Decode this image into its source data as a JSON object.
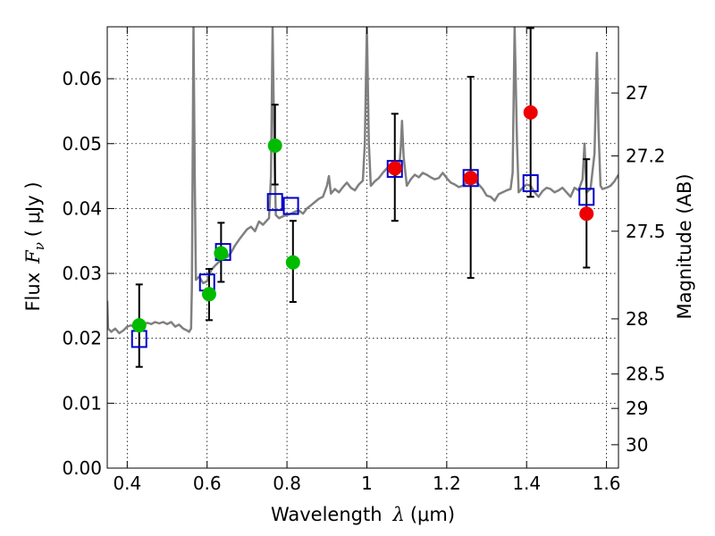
{
  "chart_data": {
    "type": "scatter",
    "xlabel_text": "Wavelength",
    "xlabel_symbol": "λ",
    "xlabel_unit": "(μm)",
    "ylabel_text": "Flux",
    "ylabel_symbol": "F",
    "ylabel_subscript": "ν",
    "ylabel_unit": "( μJy )",
    "y2label": "Magnitude (AB)",
    "xlim": [
      0.35,
      1.63
    ],
    "ylim": [
      0.0,
      0.068
    ],
    "grid": true,
    "x_ticks": [
      0.4,
      0.6,
      0.8,
      1.0,
      1.2,
      1.4,
      1.6
    ],
    "x_tick_labels": [
      "0.4",
      "0.6",
      "0.8",
      "1",
      "1.2",
      "1.4",
      "1.6"
    ],
    "y_ticks": [
      0.0,
      0.01,
      0.02,
      0.03,
      0.04,
      0.05,
      0.06
    ],
    "y_tick_labels": [
      "0.00",
      "0.01",
      "0.02",
      "0.03",
      "0.04",
      "0.05",
      "0.06"
    ],
    "y2_ticks": [
      {
        "label": "27",
        "flux": 0.0578
      },
      {
        "label": "27.2",
        "flux": 0.0481
      },
      {
        "label": "27.5",
        "flux": 0.0365
      },
      {
        "label": "28",
        "flux": 0.023
      },
      {
        "label": "28.5",
        "flux": 0.0145
      },
      {
        "label": "29",
        "flux": 0.0092
      },
      {
        "label": "30",
        "flux": 0.0036
      }
    ],
    "series": [
      {
        "name": "model_spectrum",
        "style": "line",
        "color": "#808080",
        "points": [
          [
            0.35,
            0.0258
          ],
          [
            0.352,
            0.0215
          ],
          [
            0.36,
            0.021
          ],
          [
            0.37,
            0.0215
          ],
          [
            0.38,
            0.0208
          ],
          [
            0.39,
            0.0212
          ],
          [
            0.4,
            0.0218
          ],
          [
            0.41,
            0.022
          ],
          [
            0.42,
            0.0216
          ],
          [
            0.43,
            0.0222
          ],
          [
            0.44,
            0.022
          ],
          [
            0.45,
            0.0224
          ],
          [
            0.46,
            0.0222
          ],
          [
            0.47,
            0.0225
          ],
          [
            0.48,
            0.0223
          ],
          [
            0.49,
            0.0225
          ],
          [
            0.5,
            0.0222
          ],
          [
            0.51,
            0.0225
          ],
          [
            0.52,
            0.0218
          ],
          [
            0.53,
            0.0221
          ],
          [
            0.54,
            0.0215
          ],
          [
            0.55,
            0.0212
          ],
          [
            0.555,
            0.021
          ],
          [
            0.56,
            0.0215
          ],
          [
            0.562,
            0.028
          ],
          [
            0.566,
            0.068
          ],
          [
            0.569,
            0.045
          ],
          [
            0.572,
            0.029
          ],
          [
            0.58,
            0.0295
          ],
          [
            0.59,
            0.0285
          ],
          [
            0.6,
            0.0288
          ],
          [
            0.61,
            0.0305
          ],
          [
            0.62,
            0.0312
          ],
          [
            0.63,
            0.0318
          ],
          [
            0.64,
            0.0323
          ],
          [
            0.65,
            0.0325
          ],
          [
            0.66,
            0.0332
          ],
          [
            0.67,
            0.0343
          ],
          [
            0.68,
            0.0352
          ],
          [
            0.69,
            0.036
          ],
          [
            0.7,
            0.0368
          ],
          [
            0.71,
            0.0372
          ],
          [
            0.72,
            0.0365
          ],
          [
            0.73,
            0.038
          ],
          [
            0.74,
            0.0375
          ],
          [
            0.75,
            0.0382
          ],
          [
            0.755,
            0.0385
          ],
          [
            0.76,
            0.045
          ],
          [
            0.764,
            0.068
          ],
          [
            0.768,
            0.05
          ],
          [
            0.772,
            0.039
          ],
          [
            0.78,
            0.0385
          ],
          [
            0.79,
            0.0388
          ],
          [
            0.8,
            0.039
          ],
          [
            0.81,
            0.0392
          ],
          [
            0.82,
            0.0395
          ],
          [
            0.83,
            0.0397
          ],
          [
            0.84,
            0.0392
          ],
          [
            0.85,
            0.04
          ],
          [
            0.86,
            0.0405
          ],
          [
            0.87,
            0.041
          ],
          [
            0.88,
            0.0415
          ],
          [
            0.89,
            0.0418
          ],
          [
            0.9,
            0.0435
          ],
          [
            0.905,
            0.045
          ],
          [
            0.91,
            0.0423
          ],
          [
            0.92,
            0.043
          ],
          [
            0.93,
            0.0425
          ],
          [
            0.94,
            0.0433
          ],
          [
            0.95,
            0.044
          ],
          [
            0.96,
            0.0432
          ],
          [
            0.97,
            0.0428
          ],
          [
            0.98,
            0.0437
          ],
          [
            0.99,
            0.0443
          ],
          [
            0.995,
            0.05
          ],
          [
            1.0,
            0.068
          ],
          [
            1.005,
            0.05
          ],
          [
            1.01,
            0.0435
          ],
          [
            1.02,
            0.0442
          ],
          [
            1.03,
            0.0447
          ],
          [
            1.04,
            0.0455
          ],
          [
            1.05,
            0.0462
          ],
          [
            1.06,
            0.046
          ],
          [
            1.07,
            0.045
          ],
          [
            1.08,
            0.0455
          ],
          [
            1.085,
            0.0495
          ],
          [
            1.088,
            0.0535
          ],
          [
            1.092,
            0.048
          ],
          [
            1.1,
            0.0435
          ],
          [
            1.11,
            0.0445
          ],
          [
            1.12,
            0.0452
          ],
          [
            1.13,
            0.0448
          ],
          [
            1.14,
            0.0455
          ],
          [
            1.15,
            0.0452
          ],
          [
            1.16,
            0.0448
          ],
          [
            1.17,
            0.0445
          ],
          [
            1.18,
            0.0447
          ],
          [
            1.19,
            0.0455
          ],
          [
            1.2,
            0.0447
          ],
          [
            1.21,
            0.044
          ],
          [
            1.22,
            0.0437
          ],
          [
            1.23,
            0.0433
          ],
          [
            1.24,
            0.0435
          ],
          [
            1.25,
            0.044
          ],
          [
            1.26,
            0.0445
          ],
          [
            1.27,
            0.0442
          ],
          [
            1.28,
            0.0437
          ],
          [
            1.29,
            0.043
          ],
          [
            1.3,
            0.042
          ],
          [
            1.31,
            0.0418
          ],
          [
            1.32,
            0.0412
          ],
          [
            1.33,
            0.0422
          ],
          [
            1.34,
            0.0425
          ],
          [
            1.35,
            0.0428
          ],
          [
            1.36,
            0.043
          ],
          [
            1.365,
            0.0455
          ],
          [
            1.37,
            0.068
          ],
          [
            1.376,
            0.05
          ],
          [
            1.38,
            0.0425
          ],
          [
            1.39,
            0.0432
          ],
          [
            1.4,
            0.0437
          ],
          [
            1.41,
            0.0435
          ],
          [
            1.42,
            0.0425
          ],
          [
            1.43,
            0.0418
          ],
          [
            1.44,
            0.0427
          ],
          [
            1.45,
            0.0432
          ],
          [
            1.46,
            0.043
          ],
          [
            1.47,
            0.0425
          ],
          [
            1.48,
            0.0428
          ],
          [
            1.49,
            0.0432
          ],
          [
            1.5,
            0.0425
          ],
          [
            1.51,
            0.0418
          ],
          [
            1.52,
            0.0432
          ],
          [
            1.53,
            0.0428
          ],
          [
            1.54,
            0.0445
          ],
          [
            1.545,
            0.05
          ],
          [
            1.55,
            0.0425
          ],
          [
            1.56,
            0.043
          ],
          [
            1.57,
            0.0485
          ],
          [
            1.573,
            0.0562
          ],
          [
            1.576,
            0.064
          ],
          [
            1.58,
            0.052
          ],
          [
            1.585,
            0.0435
          ],
          [
            1.59,
            0.043
          ],
          [
            1.6,
            0.0432
          ],
          [
            1.61,
            0.0435
          ],
          [
            1.62,
            0.0442
          ],
          [
            1.63,
            0.0452
          ]
        ]
      },
      {
        "name": "model_photometry",
        "style": "open-square",
        "color": "#0000cc",
        "points": [
          [
            0.43,
            0.0199
          ],
          [
            0.6,
            0.0286
          ],
          [
            0.64,
            0.0333
          ],
          [
            0.77,
            0.041
          ],
          [
            0.81,
            0.0404
          ],
          [
            1.07,
            0.0461
          ],
          [
            1.26,
            0.0447
          ],
          [
            1.41,
            0.0439
          ],
          [
            1.55,
            0.0418
          ]
        ]
      },
      {
        "name": "observed_green",
        "style": "filled-circle",
        "color": "#00bb00",
        "points": [
          {
            "x": 0.43,
            "y": 0.022,
            "lo": 0.0156,
            "hi": 0.0283
          },
          {
            "x": 0.605,
            "y": 0.0268,
            "lo": 0.0228,
            "hi": 0.0307
          },
          {
            "x": 0.635,
            "y": 0.0331,
            "lo": 0.0287,
            "hi": 0.0378
          },
          {
            "x": 0.77,
            "y": 0.0497,
            "lo": 0.0437,
            "hi": 0.056
          },
          {
            "x": 0.815,
            "y": 0.0317,
            "lo": 0.0256,
            "hi": 0.0381
          }
        ]
      },
      {
        "name": "observed_red",
        "style": "filled-circle",
        "color": "#ee0000",
        "points": [
          {
            "x": 1.07,
            "y": 0.0462,
            "lo": 0.0381,
            "hi": 0.0546
          },
          {
            "x": 1.26,
            "y": 0.0447,
            "lo": 0.0293,
            "hi": 0.0603
          },
          {
            "x": 1.41,
            "y": 0.0548,
            "lo": 0.0418,
            "hi": 0.0678
          },
          {
            "x": 1.55,
            "y": 0.0392,
            "lo": 0.0309,
            "hi": 0.0476
          }
        ]
      }
    ]
  }
}
